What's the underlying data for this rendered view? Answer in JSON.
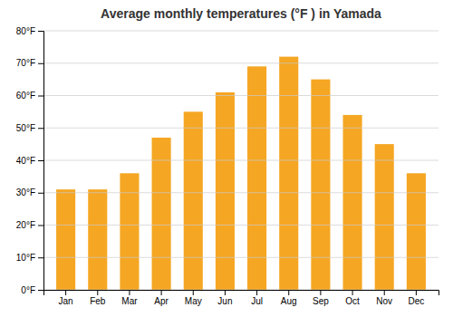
{
  "chart_data": {
    "type": "bar",
    "title": "Average monthly temperatures (°F ) in Yamada",
    "categories": [
      "Jan",
      "Feb",
      "Mar",
      "Apr",
      "May",
      "Jun",
      "Jul",
      "Aug",
      "Sep",
      "Oct",
      "Nov",
      "Dec"
    ],
    "values": [
      31,
      31,
      36,
      47,
      55,
      61,
      69,
      72,
      65,
      54,
      45,
      36
    ],
    "color": "#F5A623",
    "ylim": [
      0,
      80
    ],
    "yticks": [
      {
        "value": 0,
        "label": "0°F"
      },
      {
        "value": 10,
        "label": "10°F"
      },
      {
        "value": 20,
        "label": "20°F"
      },
      {
        "value": 30,
        "label": "30°F"
      },
      {
        "value": 40,
        "label": "40°F"
      },
      {
        "value": 50,
        "label": "50°F"
      },
      {
        "value": 60,
        "label": "60°F"
      },
      {
        "value": 70,
        "label": "70°F"
      },
      {
        "value": 80,
        "label": "80°F"
      }
    ],
    "grid": true
  }
}
